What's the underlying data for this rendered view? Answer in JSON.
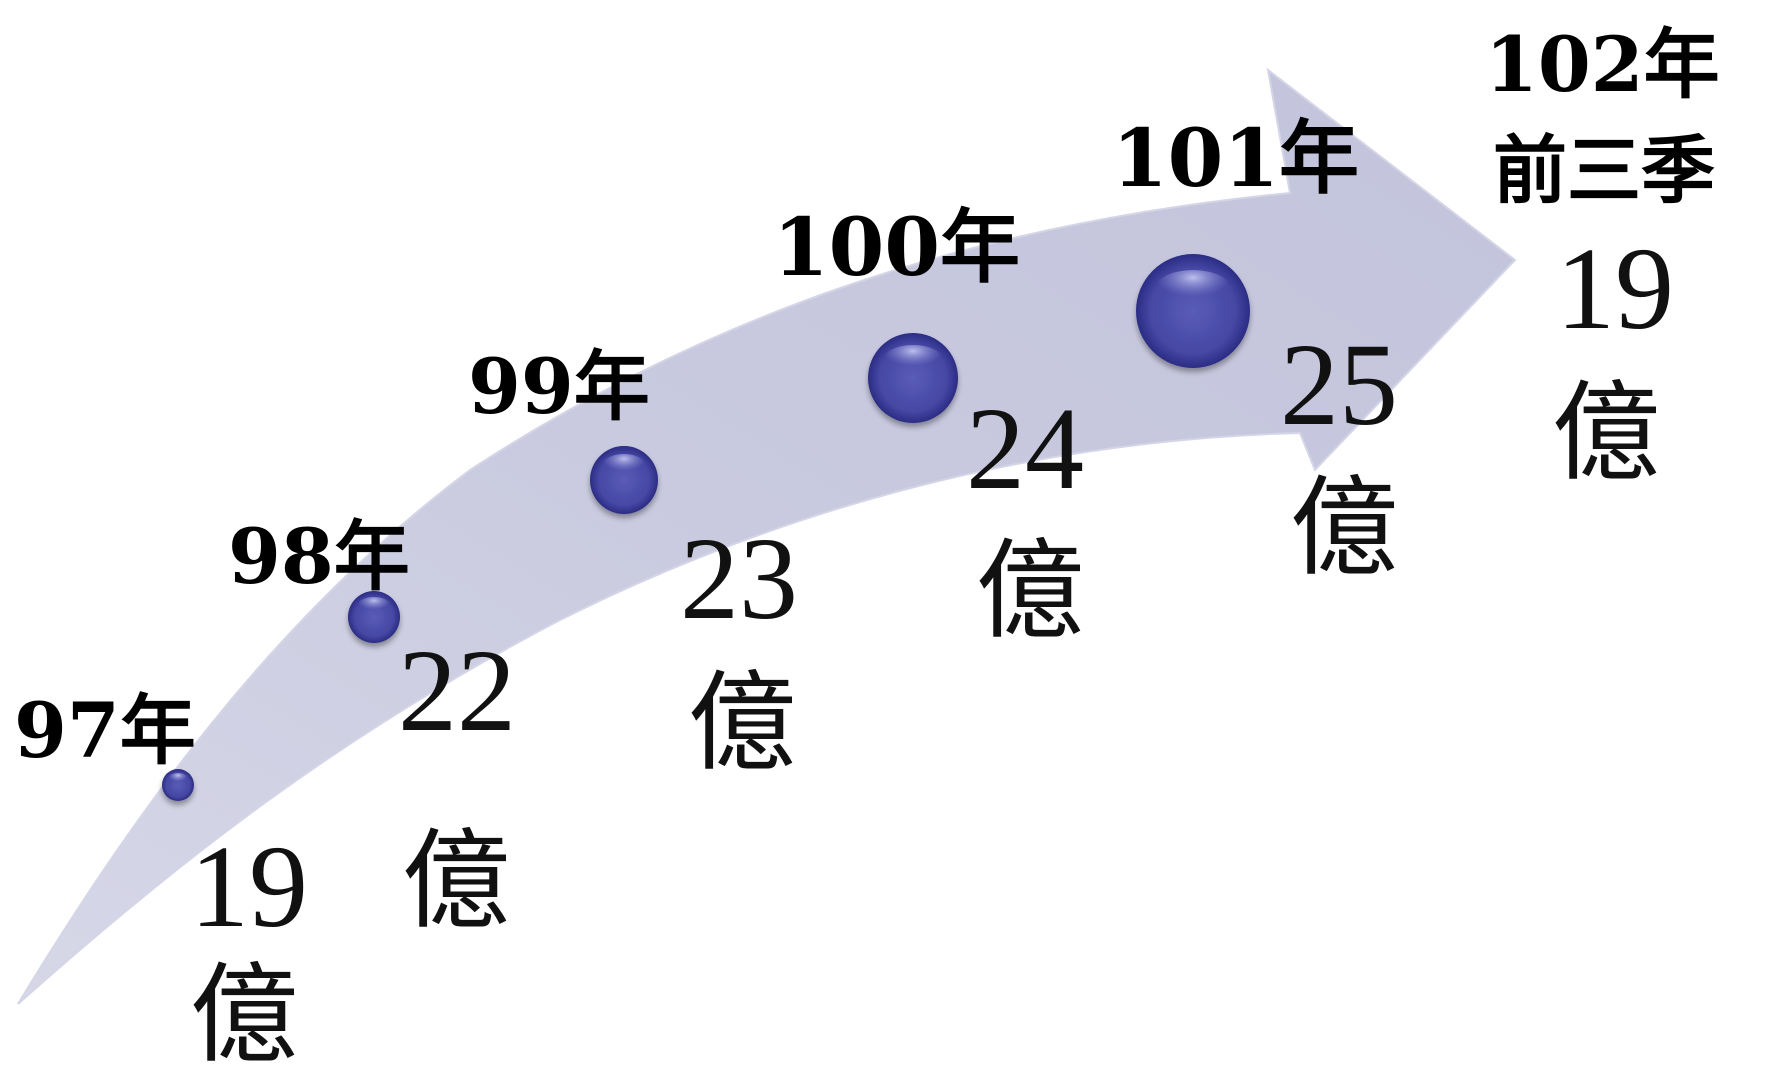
{
  "colors": {
    "arrow_fill": "#c8c9df",
    "arrow_edge": "#d9dae9",
    "dot_dark": "#2c2d86",
    "dot_mid": "#4a4ba8",
    "dot_light": "#9fa2e2",
    "text": "#000000"
  },
  "milestones": [
    {
      "year": "97年",
      "amount": "19",
      "unit": "億"
    },
    {
      "year": "98年",
      "amount": "22",
      "unit": "億"
    },
    {
      "year": "99年",
      "amount": "23",
      "unit": "億"
    },
    {
      "year": "100年",
      "amount": "24",
      "unit": "億"
    },
    {
      "year": "101年",
      "amount": "25",
      "unit": "億"
    },
    {
      "year": "102年",
      "period": "前三季",
      "amount": "19",
      "unit": "億"
    }
  ]
}
